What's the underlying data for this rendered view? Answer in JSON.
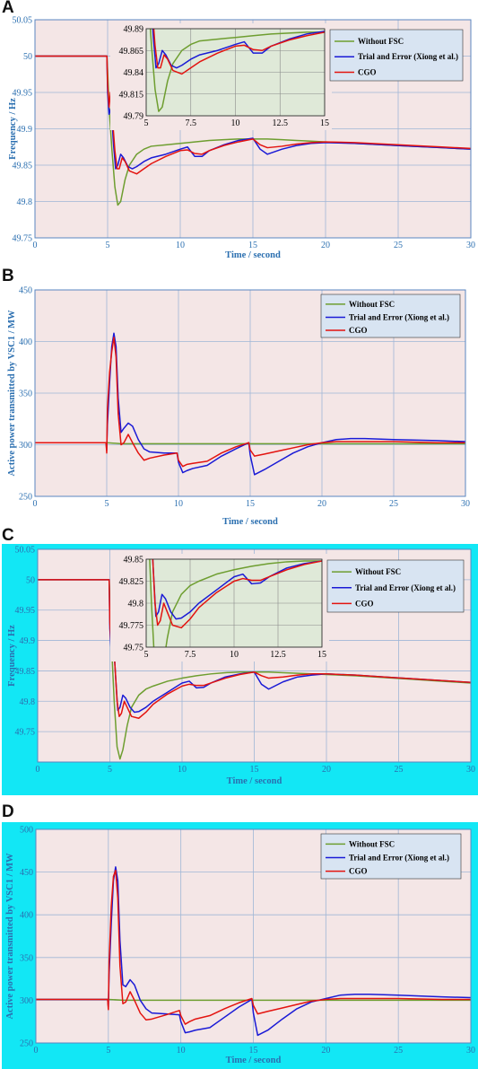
{
  "chart_data": [
    {
      "panel": "A",
      "type": "line",
      "title": "",
      "xlabel": "Time / second",
      "ylabel": "Frequency / Hz",
      "xlim": [
        0,
        30
      ],
      "ylim": [
        49.75,
        50.05
      ],
      "xticks": [
        0,
        5,
        10,
        15,
        20,
        25,
        30
      ],
      "yticks": [
        49.75,
        49.8,
        49.85,
        49.9,
        49.95,
        50,
        50.05
      ],
      "grid": true,
      "legend_position": "top-right",
      "frame_background": "#ffffff",
      "plot_background": "#f4e6e6",
      "series": [
        {
          "name": "Without FSC",
          "color": "#6e9e30",
          "x": [
            0,
            4.95,
            5.0,
            5.1,
            5.3,
            5.5,
            5.7,
            5.9,
            6.2,
            6.5,
            7.0,
            7.5,
            8.0,
            9.0,
            10.0,
            11.0,
            12.0,
            13.0,
            14.0,
            15.0,
            16.0,
            17.0,
            18.0,
            19.0,
            20.0,
            22.0,
            24.0,
            26.0,
            28.0,
            30.0
          ],
          "y": [
            50,
            50,
            49.98,
            49.93,
            49.87,
            49.82,
            49.795,
            49.8,
            49.83,
            49.85,
            49.865,
            49.872,
            49.876,
            49.878,
            49.88,
            49.882,
            49.884,
            49.885,
            49.886,
            49.886,
            49.886,
            49.885,
            49.884,
            49.883,
            49.882,
            49.88,
            49.878,
            49.876,
            49.874,
            49.872
          ]
        },
        {
          "name": "Trial and Error (Xiong et al.)",
          "color": "#1a1ad6",
          "x": [
            0,
            4.95,
            5.0,
            5.1,
            5.25,
            5.4,
            5.55,
            5.7,
            5.9,
            6.1,
            6.4,
            6.7,
            7.0,
            7.5,
            8.0,
            9.0,
            10.0,
            10.5,
            11.0,
            11.5,
            12.0,
            13.0,
            14.0,
            15.0,
            15.5,
            16.0,
            17.0,
            18.0,
            19.0,
            20.0,
            22.0,
            24.0,
            26.0,
            28.0,
            30.0
          ],
          "y": [
            50,
            50,
            49.95,
            49.92,
            49.93,
            49.88,
            49.845,
            49.85,
            49.865,
            49.86,
            49.848,
            49.845,
            49.848,
            49.855,
            49.86,
            49.865,
            49.872,
            49.875,
            49.862,
            49.862,
            49.87,
            49.878,
            49.884,
            49.887,
            49.872,
            49.865,
            49.872,
            49.877,
            49.88,
            49.881,
            49.88,
            49.878,
            49.876,
            49.874,
            49.872
          ]
        },
        {
          "name": "CGO",
          "color": "#e3130f",
          "x": [
            0,
            4.95,
            5.0,
            5.1,
            5.2,
            5.35,
            5.5,
            5.65,
            5.8,
            6.0,
            6.2,
            6.5,
            7.0,
            7.5,
            8.0,
            9.0,
            10.0,
            10.5,
            11.0,
            11.5,
            12.0,
            13.0,
            14.0,
            15.0,
            15.5,
            16.0,
            17.0,
            18.0,
            19.0,
            20.0,
            22.0,
            24.0,
            26.0,
            28.0,
            30.0
          ],
          "y": [
            50,
            50,
            49.96,
            49.93,
            49.95,
            49.91,
            49.87,
            49.845,
            49.845,
            49.86,
            49.855,
            49.842,
            49.838,
            49.845,
            49.852,
            49.862,
            49.87,
            49.871,
            49.866,
            49.865,
            49.87,
            49.877,
            49.882,
            49.886,
            49.878,
            49.874,
            49.876,
            49.879,
            49.881,
            49.882,
            49.881,
            49.879,
            49.877,
            49.875,
            49.873
          ]
        }
      ],
      "inset": {
        "xlim": [
          5,
          15
        ],
        "ylim": [
          49.79,
          49.89
        ],
        "xticks": [
          5,
          7.5,
          10,
          12.5,
          15
        ],
        "yticks": [
          49.79,
          49.815,
          49.84,
          49.865,
          49.89
        ],
        "background": "#dfe9d8"
      }
    },
    {
      "panel": "B",
      "type": "line",
      "title": "",
      "xlabel": "Time / second",
      "ylabel": "Active power transmitted by VSC1 / MW",
      "xlim": [
        0,
        30
      ],
      "ylim": [
        250,
        450
      ],
      "xticks": [
        0,
        5,
        10,
        15,
        20,
        25,
        30
      ],
      "yticks": [
        250,
        300,
        350,
        400,
        450
      ],
      "grid": true,
      "legend_position": "top-right",
      "frame_background": "#ffffff",
      "plot_background": "#f4e6e6",
      "series": [
        {
          "name": "Without FSC",
          "color": "#6e9e30",
          "x": [
            0,
            5,
            6,
            10,
            15,
            20,
            25,
            30
          ],
          "y": [
            302,
            302,
            301,
            301,
            301,
            301,
            301,
            301
          ]
        },
        {
          "name": "Trial and Error (Xiong et al.)",
          "color": "#1a1ad6",
          "x": [
            0,
            4.95,
            5.0,
            5.05,
            5.2,
            5.35,
            5.5,
            5.65,
            5.8,
            6.0,
            6.2,
            6.5,
            6.8,
            7.2,
            7.6,
            8.0,
            9.0,
            9.9,
            10.0,
            10.3,
            10.6,
            11.0,
            12.0,
            13.0,
            14.0,
            14.9,
            15.0,
            15.3,
            16.0,
            17.0,
            18.0,
            19.0,
            20.0,
            21.0,
            22.0,
            23.0,
            25.0,
            28.0,
            30.0
          ],
          "y": [
            302,
            302,
            295,
            320,
            360,
            395,
            408,
            395,
            345,
            312,
            316,
            321,
            318,
            305,
            296,
            293,
            292,
            292,
            283,
            273,
            275,
            277,
            280,
            289,
            296,
            302,
            290,
            271,
            276,
            284,
            292,
            298,
            302,
            305,
            306,
            306,
            305,
            304,
            303
          ]
        },
        {
          "name": "CGO",
          "color": "#e3130f",
          "x": [
            0,
            4.95,
            5.0,
            5.05,
            5.2,
            5.35,
            5.5,
            5.65,
            5.8,
            6.0,
            6.2,
            6.5,
            6.8,
            7.2,
            7.6,
            8.0,
            9.0,
            9.9,
            10.0,
            10.3,
            10.6,
            11.0,
            12.0,
            13.0,
            14.0,
            14.9,
            15.0,
            15.3,
            16.0,
            17.0,
            18.0,
            19.0,
            20.0,
            21.0,
            22.0,
            23.0,
            25.0,
            28.0,
            30.0
          ],
          "y": [
            302,
            302,
            292,
            335,
            370,
            390,
            404,
            385,
            330,
            300,
            302,
            310,
            302,
            292,
            285,
            287,
            290,
            292,
            285,
            279,
            281,
            282,
            284,
            292,
            298,
            302,
            295,
            289,
            291,
            294,
            297,
            300,
            302,
            303,
            303,
            303,
            303,
            302,
            302
          ]
        }
      ]
    },
    {
      "panel": "C",
      "type": "line",
      "title": "",
      "xlabel": "Time / second",
      "ylabel": "Frequency / Hz",
      "xlim": [
        0,
        30
      ],
      "ylim": [
        49.7,
        50.05
      ],
      "xticks": [
        0,
        5,
        10,
        15,
        20,
        25,
        30
      ],
      "yticks": [
        49.75,
        49.8,
        49.85,
        49.9,
        49.95,
        50,
        50.05
      ],
      "grid": true,
      "legend_position": "top-right",
      "frame_background": "#12e7f5",
      "plot_background": "#f4e6e6",
      "series": [
        {
          "name": "Without FSC",
          "color": "#6e9e30",
          "x": [
            0,
            4.95,
            5.0,
            5.1,
            5.3,
            5.5,
            5.7,
            5.9,
            6.2,
            6.5,
            7.0,
            7.5,
            8.0,
            9.0,
            10.0,
            11.0,
            12.0,
            13.0,
            14.0,
            15.0,
            16.0,
            17.0,
            18.0,
            19.0,
            20.0,
            22.0,
            24.0,
            26.0,
            28.0,
            30.0
          ],
          "y": [
            50,
            50,
            49.97,
            49.9,
            49.8,
            49.725,
            49.705,
            49.72,
            49.76,
            49.79,
            49.81,
            49.82,
            49.825,
            49.833,
            49.838,
            49.842,
            49.845,
            49.847,
            49.848,
            49.848,
            49.848,
            49.847,
            49.846,
            49.845,
            49.844,
            49.842,
            49.839,
            49.836,
            49.833,
            49.83
          ]
        },
        {
          "name": "Trial and Error (Xiong et al.)",
          "color": "#1a1ad6",
          "x": [
            0,
            4.95,
            5.0,
            5.1,
            5.25,
            5.4,
            5.55,
            5.7,
            5.9,
            6.1,
            6.4,
            6.7,
            7.0,
            7.5,
            8.0,
            9.0,
            10.0,
            10.5,
            11.0,
            11.5,
            12.0,
            13.0,
            14.0,
            15.0,
            15.5,
            16.0,
            17.0,
            18.0,
            19.0,
            20.0,
            22.0,
            24.0,
            26.0,
            28.0,
            30.0
          ],
          "y": [
            50,
            50,
            49.92,
            49.88,
            49.9,
            49.84,
            49.785,
            49.79,
            49.81,
            49.805,
            49.79,
            49.782,
            49.783,
            49.79,
            49.8,
            49.815,
            49.83,
            49.833,
            49.822,
            49.823,
            49.83,
            49.84,
            49.845,
            49.848,
            49.828,
            49.82,
            49.832,
            49.84,
            49.843,
            49.845,
            49.843,
            49.84,
            49.837,
            49.834,
            49.831
          ]
        },
        {
          "name": "CGO",
          "color": "#e3130f",
          "x": [
            0,
            4.95,
            5.0,
            5.1,
            5.2,
            5.35,
            5.5,
            5.65,
            5.8,
            6.0,
            6.2,
            6.5,
            7.0,
            7.5,
            8.0,
            9.0,
            10.0,
            10.5,
            11.0,
            11.5,
            12.0,
            13.0,
            14.0,
            15.0,
            15.5,
            16.0,
            17.0,
            18.0,
            19.0,
            20.0,
            22.0,
            24.0,
            26.0,
            28.0,
            30.0
          ],
          "y": [
            50,
            50,
            49.93,
            49.89,
            49.93,
            49.86,
            49.8,
            49.775,
            49.78,
            49.8,
            49.79,
            49.775,
            49.772,
            49.782,
            49.795,
            49.812,
            49.825,
            49.828,
            49.826,
            49.826,
            49.83,
            49.838,
            49.844,
            49.848,
            49.842,
            49.838,
            49.84,
            49.843,
            49.845,
            49.845,
            49.843,
            49.84,
            49.837,
            49.834,
            49.831
          ]
        }
      ],
      "inset": {
        "xlim": [
          5,
          15
        ],
        "ylim": [
          49.75,
          49.85
        ],
        "xticks": [
          5,
          7.5,
          10,
          12.5,
          15
        ],
        "yticks": [
          49.75,
          49.775,
          49.8,
          49.825,
          49.85
        ],
        "background": "#dfe9d8"
      }
    },
    {
      "panel": "D",
      "type": "line",
      "title": "",
      "xlabel": "Time / second",
      "ylabel": "Active power transmitted by VSC1 / MW",
      "xlim": [
        0,
        30
      ],
      "ylim": [
        250,
        500
      ],
      "xticks": [
        0,
        5,
        10,
        15,
        20,
        25,
        30
      ],
      "yticks": [
        250,
        300,
        350,
        400,
        450,
        500
      ],
      "grid": true,
      "legend_position": "top-right",
      "frame_background": "#12e7f5",
      "plot_background": "#f4e6e6",
      "series": [
        {
          "name": "Without FSC",
          "color": "#6e9e30",
          "x": [
            0,
            5,
            6,
            10,
            15,
            20,
            25,
            30
          ],
          "y": [
            301,
            301,
            300,
            300,
            300,
            300,
            300,
            300
          ]
        },
        {
          "name": "Trial and Error (Xiong et al.)",
          "color": "#1a1ad6",
          "x": [
            0,
            4.95,
            5.0,
            5.05,
            5.2,
            5.35,
            5.5,
            5.65,
            5.8,
            6.0,
            6.2,
            6.5,
            6.8,
            7.2,
            7.6,
            8.0,
            9.0,
            9.9,
            10.0,
            10.3,
            10.6,
            11.0,
            12.0,
            13.0,
            14.0,
            14.9,
            15.0,
            15.3,
            16.0,
            17.0,
            18.0,
            19.0,
            20.0,
            21.0,
            22.0,
            23.0,
            25.0,
            28.0,
            30.0
          ],
          "y": [
            301,
            301,
            292,
            330,
            390,
            440,
            456,
            440,
            370,
            318,
            316,
            324,
            318,
            300,
            290,
            285,
            284,
            283,
            275,
            262,
            263,
            265,
            268,
            280,
            292,
            301,
            285,
            259,
            265,
            278,
            290,
            298,
            302,
            306,
            307,
            307,
            306,
            304,
            303
          ]
        },
        {
          "name": "CGO",
          "color": "#e3130f",
          "x": [
            0,
            4.95,
            5.0,
            5.05,
            5.2,
            5.35,
            5.5,
            5.65,
            5.8,
            6.0,
            6.2,
            6.5,
            6.8,
            7.2,
            7.6,
            8.0,
            9.0,
            9.9,
            10.0,
            10.3,
            10.6,
            11.0,
            12.0,
            13.0,
            14.0,
            14.9,
            15.0,
            15.3,
            16.0,
            17.0,
            18.0,
            19.0,
            20.0,
            21.0,
            22.0,
            23.0,
            25.0,
            28.0,
            30.0
          ],
          "y": [
            301,
            301,
            289,
            345,
            410,
            445,
            452,
            420,
            340,
            296,
            298,
            310,
            300,
            285,
            277,
            278,
            283,
            288,
            282,
            272,
            275,
            278,
            282,
            290,
            297,
            302,
            294,
            284,
            287,
            291,
            295,
            299,
            301,
            302,
            302,
            302,
            302,
            301,
            301
          ]
        }
      ],
      "inset": null
    }
  ]
}
